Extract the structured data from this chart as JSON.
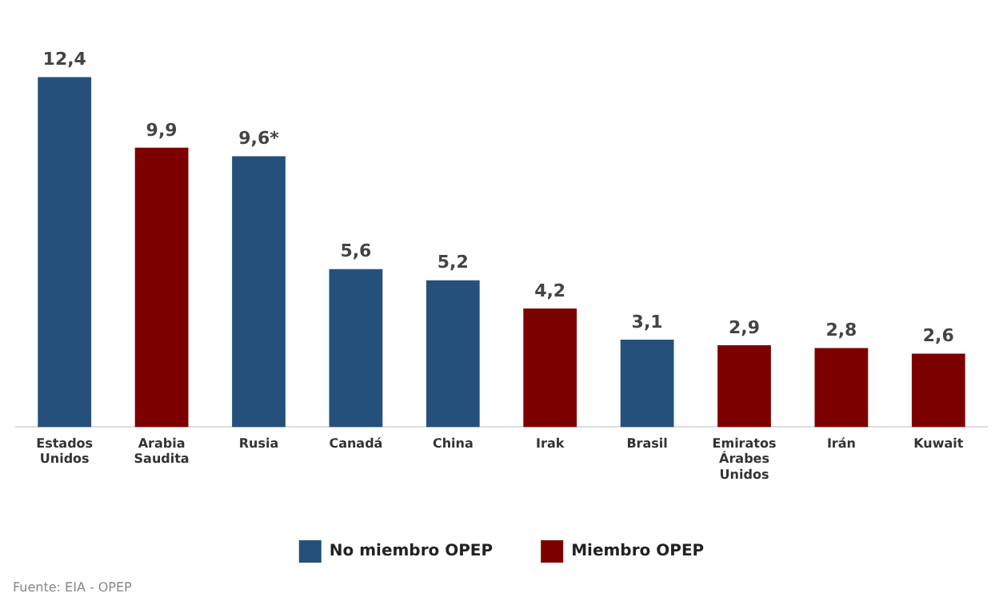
{
  "chart_data": {
    "type": "bar",
    "categories": [
      "Estados Unidos",
      "Arabia Saudita",
      "Rusia",
      "Canadá",
      "China",
      "Irak",
      "Brasil",
      "Emiratos Árabes Unidos",
      "Irán",
      "Kuwait"
    ],
    "series": [
      {
        "name": "No miembro OPEP",
        "color": "#25507c",
        "values": [
          12.4,
          null,
          9.6,
          5.6,
          5.2,
          null,
          3.1,
          null,
          null,
          null
        ],
        "value_labels": [
          "12,4",
          null,
          "9,6*",
          "5,6",
          "5,2",
          null,
          "3,1",
          null,
          null,
          null
        ]
      },
      {
        "name": "Miembro OPEP",
        "color": "#7d0000",
        "values": [
          null,
          9.9,
          null,
          null,
          null,
          4.2,
          null,
          2.9,
          2.8,
          2.6
        ],
        "value_labels": [
          null,
          "9,9",
          null,
          null,
          null,
          "4,2",
          null,
          "2,9",
          "2,8",
          "2,6"
        ]
      }
    ],
    "legend": "bottom",
    "grid": false,
    "tick_labels": "x",
    "annotations": [
      "Fuente: EIA - OPEP"
    ]
  }
}
